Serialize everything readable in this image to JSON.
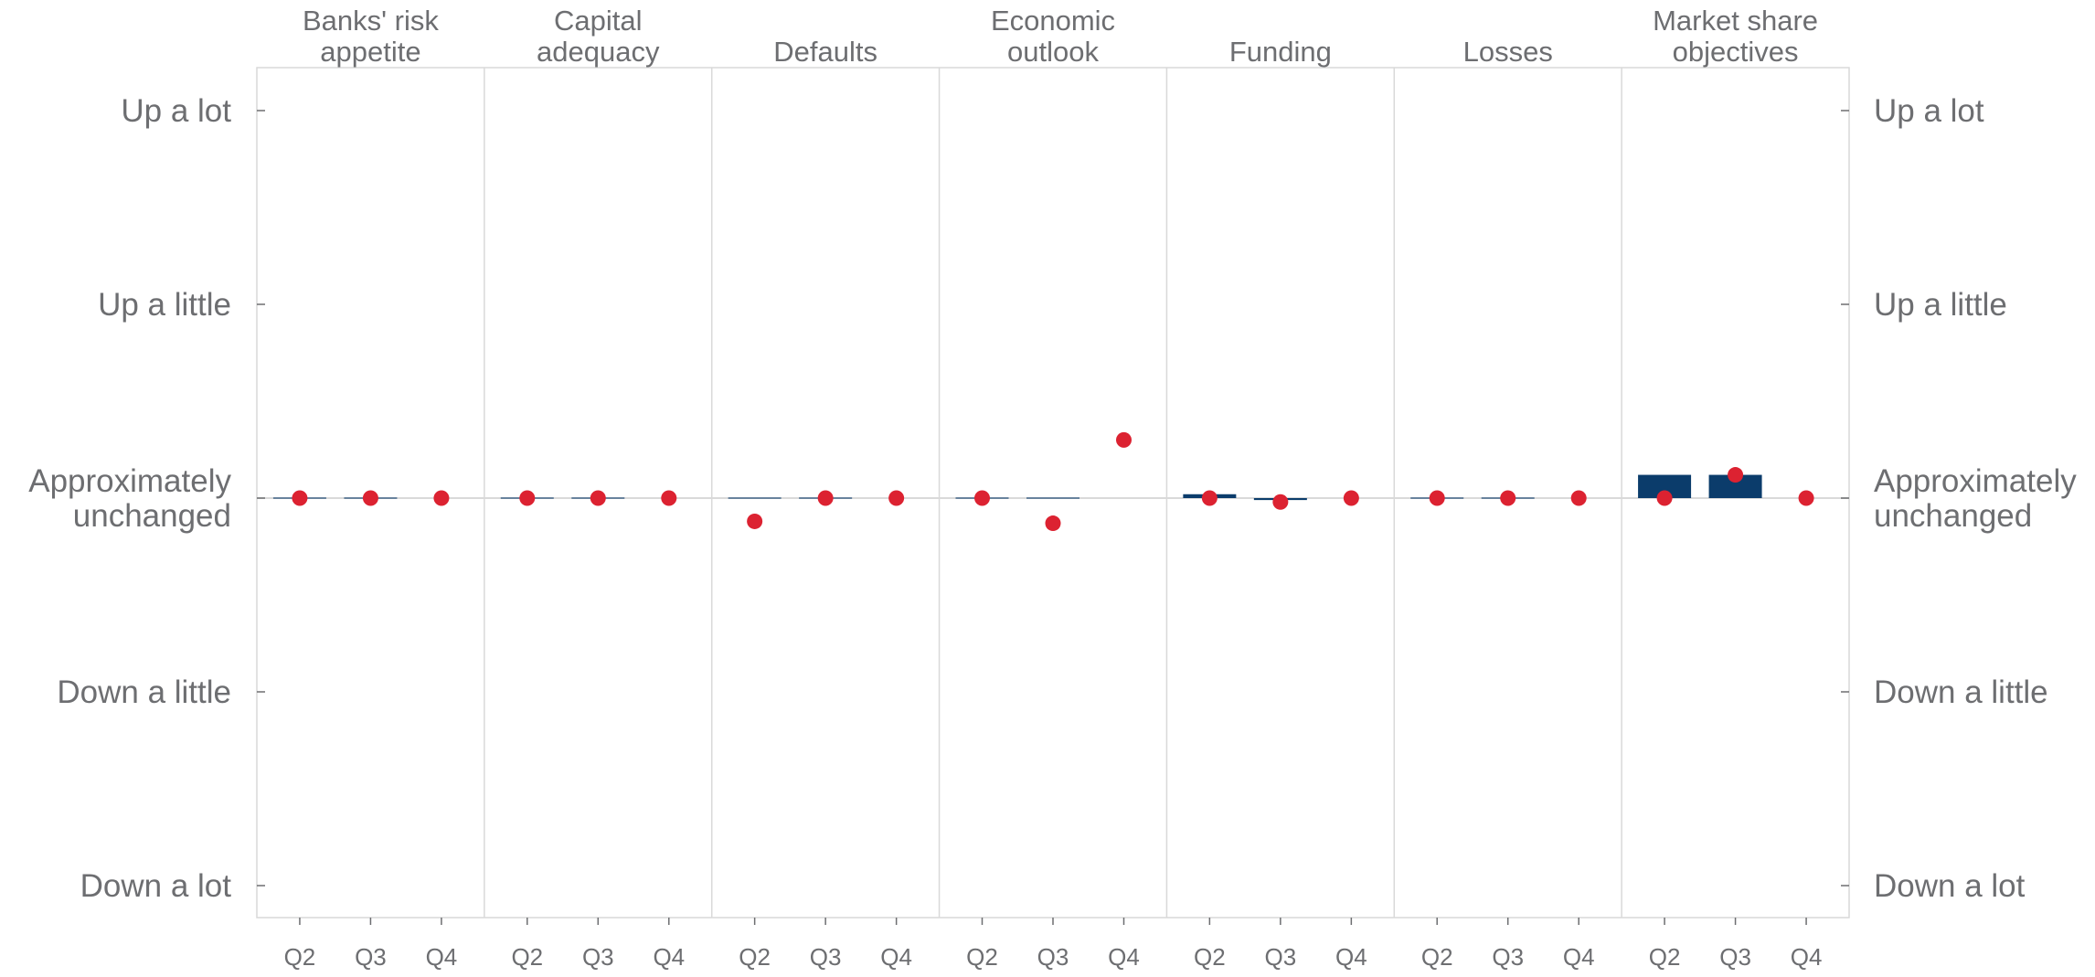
{
  "chart_data": {
    "type": "bar",
    "categories": [
      "Q2",
      "Q3",
      "Q4"
    ],
    "y_levels": [
      {
        "value": 2,
        "lines": [
          "Up a lot"
        ]
      },
      {
        "value": 1,
        "lines": [
          "Up a little"
        ]
      },
      {
        "value": 0,
        "lines": [
          "Approximately",
          "unchanged"
        ]
      },
      {
        "value": -1,
        "lines": [
          "Down a little"
        ]
      },
      {
        "value": -2,
        "lines": [
          "Down a lot"
        ]
      }
    ],
    "ylim": [
      -2.2,
      2.2
    ],
    "grid": false,
    "colors": {
      "bar": "#0b3c6b",
      "dot": "#dc2231",
      "text": "#6d6e71",
      "axis": "#d9d9d9"
    },
    "panels": [
      {
        "title": [
          "Banks' risk",
          "appetite"
        ],
        "bars": [
          0,
          0,
          null
        ],
        "dots": [
          0,
          0,
          0
        ]
      },
      {
        "title": [
          "Capital",
          "adequacy"
        ],
        "bars": [
          0,
          0,
          null
        ],
        "dots": [
          0,
          0,
          0
        ]
      },
      {
        "title": [
          "Defaults"
        ],
        "bars": [
          0,
          0,
          null
        ],
        "dots": [
          -0.12,
          0,
          0
        ]
      },
      {
        "title": [
          "Economic",
          "outlook"
        ],
        "bars": [
          0,
          0,
          null
        ],
        "dots": [
          0,
          -0.13,
          0.3
        ]
      },
      {
        "title": [
          "Funding"
        ],
        "bars": [
          0.02,
          -0.01,
          null
        ],
        "dots": [
          0,
          -0.02,
          0
        ]
      },
      {
        "title": [
          "Losses"
        ],
        "bars": [
          0,
          0,
          null
        ],
        "dots": [
          0,
          0,
          0
        ]
      },
      {
        "title": [
          "Market share",
          "objectives"
        ],
        "bars": [
          0.12,
          0.12,
          null
        ],
        "dots": [
          0,
          0.12,
          0
        ]
      }
    ]
  }
}
